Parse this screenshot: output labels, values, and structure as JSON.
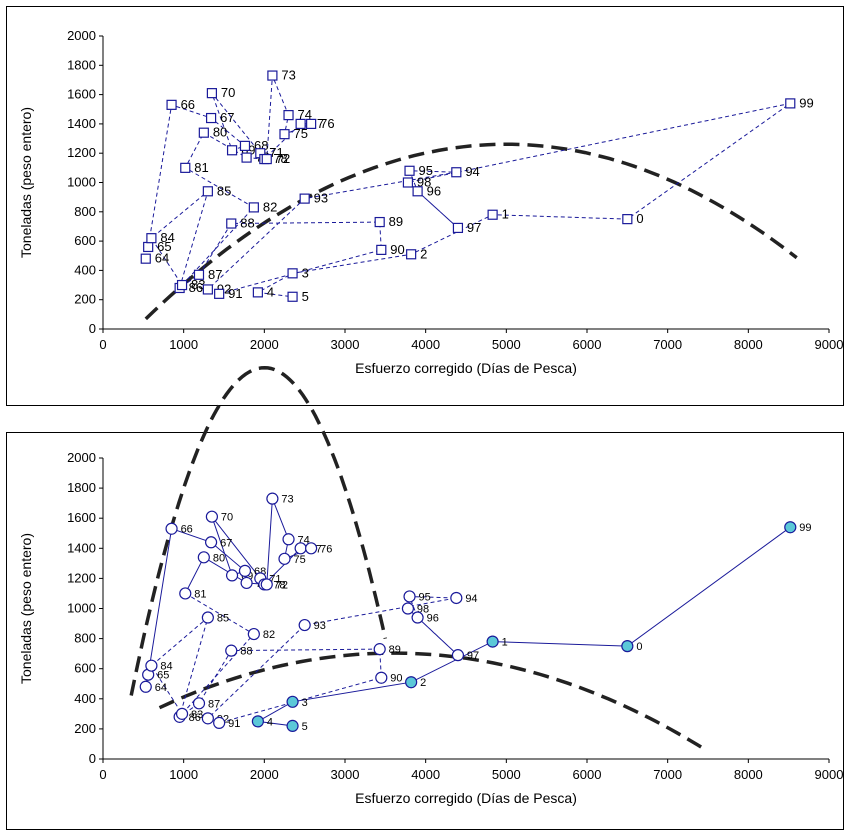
{
  "chart_data": [
    {
      "type": "scatter",
      "xlabel": "Esfuerzo corregido (Días de Pesca)",
      "ylabel": "Toneladas (peso entero)",
      "xlim": [
        0,
        9000
      ],
      "ylim": [
        0,
        2000
      ],
      "xticks": [
        "0",
        "1000",
        "2000",
        "3000",
        "4000",
        "5000",
        "6000",
        "7000",
        "8000",
        "9000"
      ],
      "yticks": [
        "0",
        "200",
        "400",
        "600",
        "800",
        "1000",
        "1200",
        "1400",
        "1600",
        "1800",
        "2000"
      ],
      "grid": false,
      "marker": "square",
      "series": [
        {
          "points": [
            {
              "year": "64",
              "x": 530,
              "y": 480
            },
            {
              "year": "65",
              "x": 560,
              "y": 560
            },
            {
              "year": "84",
              "x": 600,
              "y": 620
            },
            {
              "year": "66",
              "x": 850,
              "y": 1530
            },
            {
              "year": "86",
              "x": 950,
              "y": 280
            },
            {
              "year": "83",
              "x": 980,
              "y": 300
            },
            {
              "year": "81",
              "x": 1020,
              "y": 1100
            },
            {
              "year": "87",
              "x": 1190,
              "y": 370
            },
            {
              "year": "80",
              "x": 1250,
              "y": 1340
            },
            {
              "year": "85",
              "x": 1300,
              "y": 940
            },
            {
              "year": "92",
              "x": 1300,
              "y": 270
            },
            {
              "year": "67",
              "x": 1340,
              "y": 1440
            },
            {
              "year": "70",
              "x": 1350,
              "y": 1610
            },
            {
              "year": "91",
              "x": 1440,
              "y": 240
            },
            {
              "year": "88",
              "x": 1590,
              "y": 720
            },
            {
              "year": "69",
              "x": 1600,
              "y": 1220
            },
            {
              "year": "68",
              "x": 1760,
              "y": 1250
            },
            {
              "year": "79",
              "x": 1780,
              "y": 1170
            },
            {
              "year": "82",
              "x": 1870,
              "y": 830
            },
            {
              "year": "4",
              "x": 1920,
              "y": 250
            },
            {
              "year": "71",
              "x": 1950,
              "y": 1200
            },
            {
              "year": "78",
              "x": 2000,
              "y": 1160
            },
            {
              "year": "72",
              "x": 2030,
              "y": 1160
            },
            {
              "year": "73",
              "x": 2100,
              "y": 1730
            },
            {
              "year": "75",
              "x": 2250,
              "y": 1330
            },
            {
              "year": "74",
              "x": 2300,
              "y": 1460
            },
            {
              "year": "3",
              "x": 2350,
              "y": 380
            },
            {
              "year": "5",
              "x": 2350,
              "y": 220
            },
            {
              "year": "77",
              "x": 2450,
              "y": 1400
            },
            {
              "year": "93",
              "x": 2500,
              "y": 890
            },
            {
              "year": "76",
              "x": 2580,
              "y": 1400
            },
            {
              "year": "89",
              "x": 3430,
              "y": 730
            },
            {
              "year": "90",
              "x": 3450,
              "y": 540
            },
            {
              "year": "98",
              "x": 3780,
              "y": 1000
            },
            {
              "year": "95",
              "x": 3800,
              "y": 1080
            },
            {
              "year": "2",
              "x": 3820,
              "y": 510
            },
            {
              "year": "96",
              "x": 3900,
              "y": 940
            },
            {
              "year": "94",
              "x": 4380,
              "y": 1070
            },
            {
              "year": "97",
              "x": 4400,
              "y": 690
            },
            {
              "year": "1",
              "x": 4830,
              "y": 780
            },
            {
              "year": "0",
              "x": 6500,
              "y": 750
            },
            {
              "year": "99",
              "x": 8520,
              "y": 1540
            }
          ],
          "path_dashed": [
            "64",
            "65",
            "66",
            "67",
            "68",
            "69",
            "70",
            "71",
            "72",
            "73",
            "74",
            "75",
            "76",
            "77",
            "78",
            "79",
            "80",
            "81",
            "82",
            "83",
            "84",
            "85",
            "86",
            "87",
            "88",
            "89",
            "90",
            "91",
            "92",
            "93",
            "94",
            "95",
            "96",
            "97",
            "98",
            "99",
            "0",
            "1",
            "2",
            "3",
            "4",
            "5"
          ]
        }
      ],
      "fitted_curves": [
        {
          "style": "dashed",
          "x_start": 530,
          "x_end": 8600,
          "poly": [
            -230.5,
            0.5968,
            -5.97e-05
          ]
        }
      ]
    },
    {
      "type": "scatter",
      "xlabel": "Esfuerzo corregido (Días de Pesca)",
      "ylabel": "Toneladas (peso entero)",
      "xlim": [
        0,
        9000
      ],
      "ylim": [
        0,
        2000
      ],
      "xticks": [
        "0",
        "1000",
        "2000",
        "3000",
        "4000",
        "5000",
        "6000",
        "7000",
        "8000",
        "9000"
      ],
      "yticks": [
        "0",
        "200",
        "400",
        "600",
        "800",
        "1000",
        "1200",
        "1400",
        "1600",
        "1800",
        "2000"
      ],
      "grid": false,
      "marker": "circle",
      "filled_color": "#5bc8d8",
      "series": [
        {
          "points": [
            {
              "year": "64",
              "x": 530,
              "y": 480
            },
            {
              "year": "65",
              "x": 560,
              "y": 560
            },
            {
              "year": "84",
              "x": 600,
              "y": 620
            },
            {
              "year": "66",
              "x": 850,
              "y": 1530
            },
            {
              "year": "86",
              "x": 950,
              "y": 280
            },
            {
              "year": "83",
              "x": 980,
              "y": 300
            },
            {
              "year": "81",
              "x": 1020,
              "y": 1100
            },
            {
              "year": "87",
              "x": 1190,
              "y": 370
            },
            {
              "year": "80",
              "x": 1250,
              "y": 1340
            },
            {
              "year": "85",
              "x": 1300,
              "y": 940
            },
            {
              "year": "92",
              "x": 1300,
              "y": 270
            },
            {
              "year": "67",
              "x": 1340,
              "y": 1440
            },
            {
              "year": "70",
              "x": 1350,
              "y": 1610
            },
            {
              "year": "91",
              "x": 1440,
              "y": 240
            },
            {
              "year": "88",
              "x": 1590,
              "y": 720
            },
            {
              "year": "69",
              "x": 1600,
              "y": 1220
            },
            {
              "year": "68",
              "x": 1760,
              "y": 1250
            },
            {
              "year": "79",
              "x": 1780,
              "y": 1170
            },
            {
              "year": "82",
              "x": 1870,
              "y": 830
            },
            {
              "year": "4",
              "x": 1920,
              "y": 250,
              "filled": true
            },
            {
              "year": "71",
              "x": 1950,
              "y": 1200
            },
            {
              "year": "78",
              "x": 2000,
              "y": 1160
            },
            {
              "year": "72",
              "x": 2030,
              "y": 1160
            },
            {
              "year": "73",
              "x": 2100,
              "y": 1730
            },
            {
              "year": "75",
              "x": 2250,
              "y": 1330
            },
            {
              "year": "74",
              "x": 2300,
              "y": 1460
            },
            {
              "year": "3",
              "x": 2350,
              "y": 380,
              "filled": true
            },
            {
              "year": "5",
              "x": 2350,
              "y": 220,
              "filled": true
            },
            {
              "year": "77",
              "x": 2450,
              "y": 1400
            },
            {
              "year": "93",
              "x": 2500,
              "y": 890
            },
            {
              "year": "76",
              "x": 2580,
              "y": 1400
            },
            {
              "year": "89",
              "x": 3430,
              "y": 730
            },
            {
              "year": "90",
              "x": 3450,
              "y": 540
            },
            {
              "year": "98",
              "x": 3780,
              "y": 1000
            },
            {
              "year": "95",
              "x": 3800,
              "y": 1080
            },
            {
              "year": "2",
              "x": 3820,
              "y": 510,
              "filled": true
            },
            {
              "year": "96",
              "x": 3900,
              "y": 940
            },
            {
              "year": "94",
              "x": 4380,
              "y": 1070
            },
            {
              "year": "97",
              "x": 4400,
              "y": 690
            },
            {
              "year": "1",
              "x": 4830,
              "y": 780,
              "filled": true
            },
            {
              "year": "0",
              "x": 6500,
              "y": 750,
              "filled": true
            },
            {
              "year": "99",
              "x": 8520,
              "y": 1540,
              "filled": true
            }
          ],
          "path_solid_1": [
            "64",
            "65",
            "66",
            "67",
            "68",
            "69",
            "70",
            "71",
            "72",
            "73",
            "74",
            "75",
            "76",
            "77",
            "78",
            "79",
            "80",
            "81"
          ],
          "path_dashed": [
            "81",
            "82",
            "83",
            "84",
            "85",
            "86",
            "87",
            "88",
            "89",
            "90",
            "91",
            "92",
            "93",
            "94",
            "95",
            "96",
            "97",
            "98"
          ],
          "path_solid_2": [
            "99",
            "0",
            "1",
            "2",
            "3",
            "4",
            "5"
          ]
        }
      ],
      "fitted_curves": [
        {
          "style": "dashed",
          "x_start": 350,
          "x_end": 3500,
          "poly": [
            -600,
            3.2,
            -0.0008
          ]
        },
        {
          "style": "dashed",
          "x_start": 700,
          "x_end": 7450,
          "poly": [
            145,
            0.31,
            -4.3e-05
          ]
        }
      ]
    }
  ]
}
